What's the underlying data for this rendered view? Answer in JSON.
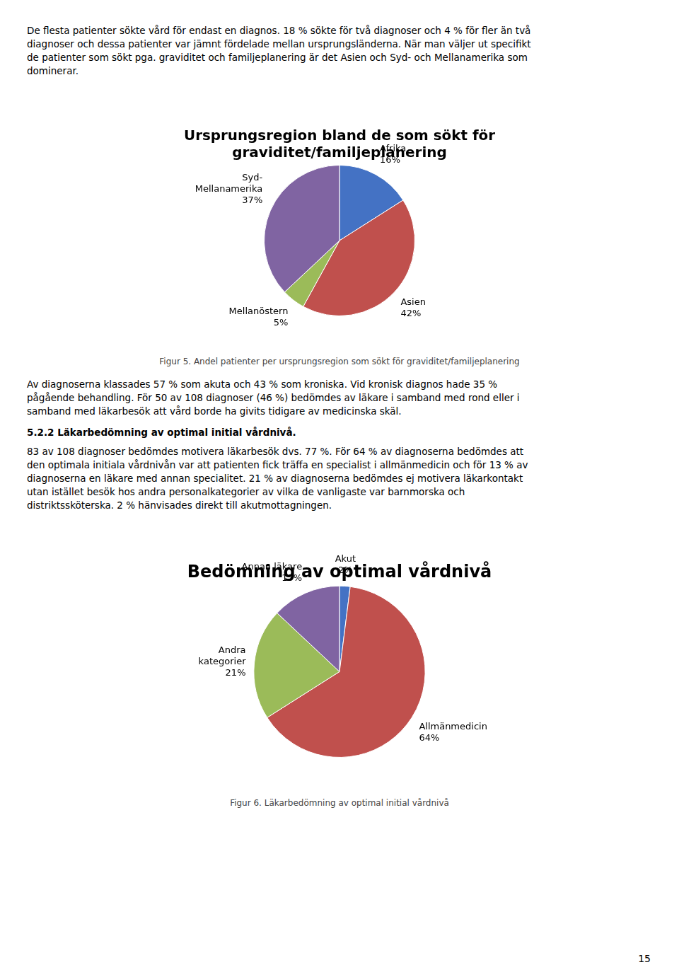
{
  "text_top": [
    "De flesta patienter sökte vård för endast en diagnos. 18 % sökte för två diagnoser och 4 % för fler än två",
    "diagnoser och dessa patienter var jämnt fördelade mellan ursprungsländerna.  När man väljer ut specifikt",
    "de patienter som sökt pga. graviditet och familjeplanering är det Asien och Syd- och Mellanamerika som",
    "dominerar."
  ],
  "text_middle": [
    "Av diagnoserna klassades 57 % som akuta och 43 % som kroniska. Vid kronisk diagnos hade 35 %",
    "pågående behandling. För 50 av 108 diagnoser (46 %) bedömdes av läkare i samband med rond eller i",
    "samband med läkarbesök att vård borde ha givits tidigare av medicinska skäl."
  ],
  "section_title": "5.2.2 Läkarbedömning av optimal initial vårdnivå.",
  "text_bottom": [
    "83 av 108 diagnoser bedömdes motivera läkarbesök dvs. 77 %. För 64 % av diagnoserna bedömdes att",
    "den optimala initiala vårdnivån var att patienten fick träffa en specialist i allmänmedicin och för 13 % av",
    "diagnoserna en läkare med annan specialitet. 21 % av diagnoserna bedömdes ej motivera läkarkontakt",
    "utan istället besök hos andra personalkategorier av vilka de vanligaste var barnmorska och",
    "distriktssköterska. 2 % hänvisades direkt till akutmottagningen."
  ],
  "captions": [
    "Figur 5. Andel patienter per ursprungsregion som sökt för graviditet/familjeplanering",
    "Figur 6. Läkarbedömning av optimal initial vårdnivå"
  ],
  "page_number": "15",
  "chart_data": [
    {
      "type": "pie",
      "title": [
        "Ursprungsregion bland de som sökt för",
        "graviditet/familjeplanering"
      ],
      "categories": [
        "Afrika",
        "Asien",
        "Mellanöstern",
        "Syd-\nMellanamerika"
      ],
      "values": [
        16,
        42,
        5,
        37
      ],
      "value_labels": [
        "16%",
        "42%",
        "5%",
        "37%"
      ],
      "colors": [
        "#4472C4",
        "#C0504D",
        "#9BBB59",
        "#8064A2"
      ],
      "data_labels": true
    },
    {
      "type": "pie",
      "title": [
        "Bedömning av optimal vårdnivå"
      ],
      "categories": [
        "Akut",
        "Allmänmedicin",
        "Andra\nkategorier",
        "Annan läkare"
      ],
      "values": [
        2,
        64,
        21,
        13
      ],
      "value_labels": [
        "2%",
        "64%",
        "21%",
        "13%"
      ],
      "colors": [
        "#4472C4",
        "#C0504D",
        "#9BBB59",
        "#8064A2"
      ],
      "data_labels": true
    }
  ]
}
